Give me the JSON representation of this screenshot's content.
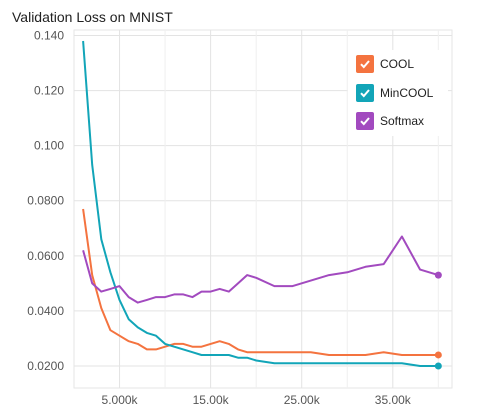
{
  "chart_data": {
    "type": "line",
    "title": "Validation Loss on MNIST",
    "xlabel": "",
    "ylabel": "",
    "xlim": [
      0,
      41500
    ],
    "ylim": [
      0.012,
      0.142
    ],
    "x_ticks": [
      5000,
      15000,
      25000,
      35000
    ],
    "x_tick_labels": [
      "5.000k",
      "15.00k",
      "25.00k",
      "35.00k"
    ],
    "y_ticks": [
      0.02,
      0.04,
      0.06,
      0.08,
      0.1,
      0.12,
      0.14
    ],
    "y_tick_labels": [
      "0.0200",
      "0.0400",
      "0.0600",
      "0.0800",
      "0.100",
      "0.120",
      "0.140"
    ],
    "grid": true,
    "legend_position": "top-right",
    "series": [
      {
        "name": "COOL",
        "color": "#f4733f",
        "x": [
          1000,
          2000,
          3000,
          4000,
          5000,
          6000,
          7000,
          8000,
          9000,
          10000,
          11000,
          12000,
          13000,
          14000,
          15000,
          16000,
          17000,
          18000,
          19000,
          20000,
          22000,
          24000,
          26000,
          28000,
          30000,
          32000,
          34000,
          36000,
          38000,
          40000
        ],
        "y": [
          0.077,
          0.053,
          0.041,
          0.033,
          0.031,
          0.029,
          0.028,
          0.026,
          0.026,
          0.027,
          0.028,
          0.028,
          0.027,
          0.027,
          0.028,
          0.029,
          0.028,
          0.026,
          0.025,
          0.025,
          0.025,
          0.025,
          0.025,
          0.024,
          0.024,
          0.024,
          0.025,
          0.024,
          0.024,
          0.024
        ]
      },
      {
        "name": "MinCOOL",
        "color": "#12a5b8",
        "x": [
          1000,
          2000,
          3000,
          4000,
          5000,
          6000,
          7000,
          8000,
          9000,
          10000,
          11000,
          12000,
          13000,
          14000,
          15000,
          16000,
          17000,
          18000,
          19000,
          20000,
          22000,
          24000,
          26000,
          28000,
          30000,
          32000,
          34000,
          36000,
          38000,
          40000
        ],
        "y": [
          0.138,
          0.093,
          0.066,
          0.054,
          0.044,
          0.037,
          0.034,
          0.032,
          0.031,
          0.028,
          0.027,
          0.026,
          0.025,
          0.024,
          0.024,
          0.024,
          0.024,
          0.023,
          0.023,
          0.022,
          0.021,
          0.021,
          0.021,
          0.021,
          0.021,
          0.021,
          0.021,
          0.021,
          0.02,
          0.02
        ]
      },
      {
        "name": "Softmax",
        "color": "#a24abf",
        "x": [
          1000,
          2000,
          3000,
          4000,
          5000,
          6000,
          7000,
          8000,
          9000,
          10000,
          11000,
          12000,
          13000,
          14000,
          15000,
          16000,
          17000,
          18000,
          19000,
          20000,
          22000,
          24000,
          26000,
          28000,
          30000,
          32000,
          34000,
          36000,
          38000,
          40000
        ],
        "y": [
          0.062,
          0.05,
          0.047,
          0.048,
          0.049,
          0.045,
          0.043,
          0.044,
          0.045,
          0.045,
          0.046,
          0.046,
          0.045,
          0.047,
          0.047,
          0.048,
          0.047,
          0.05,
          0.053,
          0.052,
          0.049,
          0.049,
          0.051,
          0.053,
          0.054,
          0.056,
          0.057,
          0.067,
          0.055,
          0.053
        ]
      }
    ]
  }
}
